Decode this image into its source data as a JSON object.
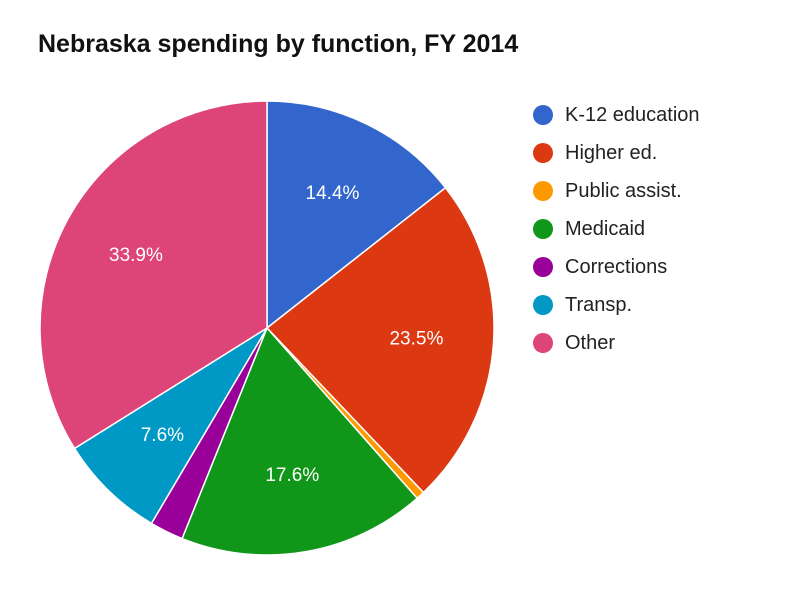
{
  "chart_data": {
    "type": "pie",
    "title": "Nebraska spending by function, FY 2014",
    "legend_position": "right",
    "slices": [
      {
        "name": "K-12 education",
        "value": 14.4,
        "label": "14.4%",
        "color": "#3366cc"
      },
      {
        "name": "Higher ed.",
        "value": 23.5,
        "label": "23.5%",
        "color": "#dc3912"
      },
      {
        "name": "Public assist.",
        "value": 0.6,
        "label": "",
        "color": "#ff9900"
      },
      {
        "name": "Medicaid",
        "value": 17.6,
        "label": "17.6%",
        "color": "#109618"
      },
      {
        "name": "Corrections",
        "value": 2.4,
        "label": "",
        "color": "#990099"
      },
      {
        "name": "Transp.",
        "value": 7.6,
        "label": "7.6%",
        "color": "#0099c6"
      },
      {
        "name": "Other",
        "value": 33.9,
        "label": "33.9%",
        "color": "#dd4477"
      }
    ]
  }
}
